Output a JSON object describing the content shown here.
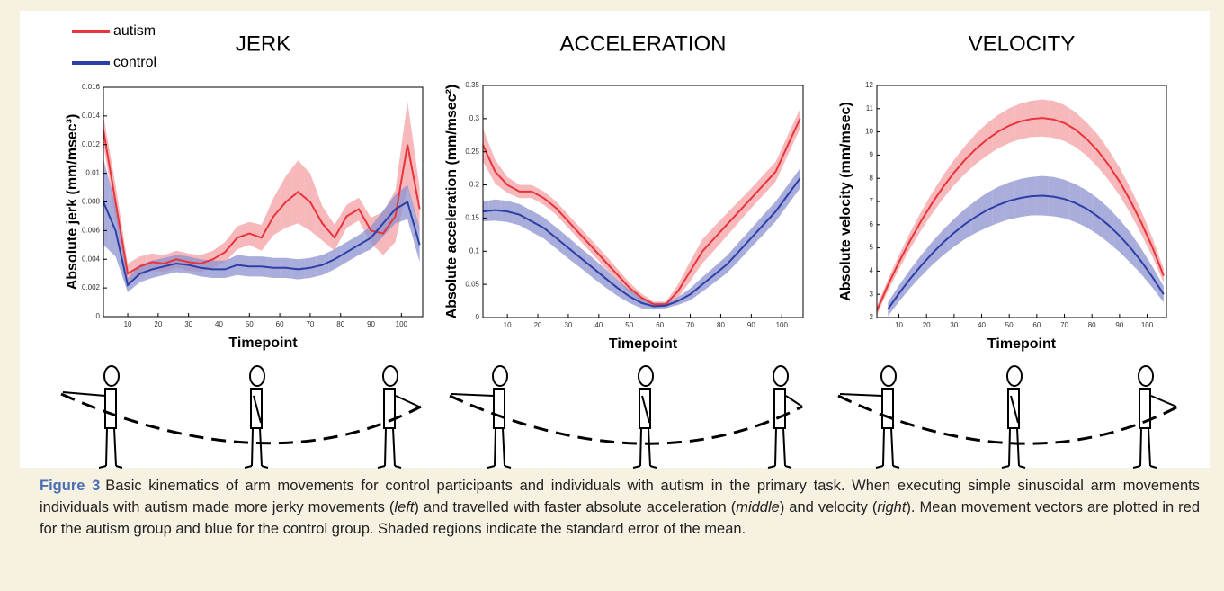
{
  "chart_data": [
    {
      "type": "line",
      "title": "JERK",
      "xlabel": "Timepoint",
      "ylabel": "Absolute jerk (mm/msec³)",
      "legend": "top-left",
      "x": [
        2,
        6,
        10,
        14,
        18,
        22,
        26,
        30,
        34,
        38,
        42,
        46,
        50,
        54,
        58,
        62,
        66,
        70,
        74,
        78,
        82,
        86,
        90,
        94,
        98,
        102,
        106
      ],
      "xlim": [
        2,
        107
      ],
      "xticks": [
        10,
        20,
        30,
        40,
        50,
        60,
        70,
        80,
        90,
        100
      ],
      "ylim": [
        0,
        0.016
      ],
      "yticks": [
        0,
        0.002,
        0.004,
        0.006,
        0.008,
        0.01,
        0.012,
        0.014,
        0.016
      ],
      "series": [
        {
          "name": "autism",
          "color": "#e8343a",
          "band_color": "#f4a0a4",
          "values": [
            0.013,
            0.008,
            0.003,
            0.0035,
            0.0038,
            0.0037,
            0.004,
            0.0038,
            0.0037,
            0.004,
            0.0045,
            0.0055,
            0.0058,
            0.0055,
            0.007,
            0.008,
            0.0087,
            0.008,
            0.0065,
            0.0055,
            0.007,
            0.0075,
            0.006,
            0.0058,
            0.007,
            0.012,
            0.0075
          ],
          "errors": [
            0.001,
            0.0012,
            0.0007,
            0.0007,
            0.0006,
            0.0006,
            0.0006,
            0.0006,
            0.0006,
            0.0006,
            0.0007,
            0.0008,
            0.0008,
            0.0009,
            0.0013,
            0.0018,
            0.0022,
            0.002,
            0.0012,
            0.0009,
            0.0008,
            0.0008,
            0.0009,
            0.0015,
            0.0018,
            0.003,
            0.0015
          ]
        },
        {
          "name": "control",
          "color": "#2c3fa6",
          "band_color": "#8c92cf",
          "values": [
            0.008,
            0.006,
            0.0022,
            0.003,
            0.0033,
            0.0035,
            0.0037,
            0.0036,
            0.0034,
            0.0033,
            0.0033,
            0.0036,
            0.0035,
            0.0035,
            0.0034,
            0.0034,
            0.0033,
            0.0034,
            0.0036,
            0.004,
            0.0045,
            0.005,
            0.0055,
            0.0065,
            0.0075,
            0.008,
            0.005
          ],
          "errors": [
            0.003,
            0.0018,
            0.0005,
            0.0006,
            0.0006,
            0.0006,
            0.0006,
            0.0006,
            0.0006,
            0.0006,
            0.0006,
            0.0007,
            0.0007,
            0.0007,
            0.0007,
            0.0007,
            0.0007,
            0.0007,
            0.0007,
            0.0007,
            0.0007,
            0.0007,
            0.0008,
            0.0009,
            0.001,
            0.0012,
            0.0012
          ]
        }
      ]
    },
    {
      "type": "line",
      "title": "ACCELERATION",
      "xlabel": "Timepoint",
      "ylabel": "Absolute acceleration (mm/msec²)",
      "x": [
        2,
        6,
        10,
        14,
        18,
        22,
        26,
        30,
        34,
        38,
        42,
        46,
        50,
        54,
        58,
        62,
        66,
        70,
        74,
        78,
        82,
        86,
        90,
        94,
        98,
        102,
        106
      ],
      "xlim": [
        2,
        107
      ],
      "xticks": [
        10,
        20,
        30,
        40,
        50,
        60,
        70,
        80,
        90,
        100
      ],
      "ylim": [
        0,
        0.35
      ],
      "yticks": [
        0,
        0.05,
        0.1,
        0.15,
        0.2,
        0.25,
        0.3,
        0.35
      ],
      "series": [
        {
          "color": "#e8343a",
          "band_color": "#f4a0a4",
          "values": [
            0.26,
            0.22,
            0.2,
            0.19,
            0.19,
            0.18,
            0.165,
            0.145,
            0.125,
            0.105,
            0.085,
            0.065,
            0.045,
            0.03,
            0.02,
            0.02,
            0.04,
            0.07,
            0.1,
            0.12,
            0.14,
            0.16,
            0.18,
            0.2,
            0.22,
            0.26,
            0.3
          ],
          "errors": [
            0.025,
            0.018,
            0.012,
            0.01,
            0.01,
            0.01,
            0.01,
            0.01,
            0.01,
            0.01,
            0.01,
            0.009,
            0.008,
            0.006,
            0.004,
            0.004,
            0.01,
            0.015,
            0.018,
            0.018,
            0.017,
            0.016,
            0.015,
            0.015,
            0.015,
            0.015,
            0.015
          ]
        },
        {
          "color": "#2c3fa6",
          "band_color": "#8c92cf",
          "values": [
            0.16,
            0.162,
            0.16,
            0.155,
            0.145,
            0.135,
            0.12,
            0.105,
            0.09,
            0.075,
            0.06,
            0.045,
            0.032,
            0.022,
            0.017,
            0.018,
            0.025,
            0.035,
            0.05,
            0.065,
            0.08,
            0.1,
            0.12,
            0.14,
            0.16,
            0.185,
            0.21
          ],
          "errors": [
            0.015,
            0.016,
            0.016,
            0.016,
            0.016,
            0.016,
            0.016,
            0.016,
            0.015,
            0.015,
            0.014,
            0.012,
            0.01,
            0.008,
            0.005,
            0.004,
            0.006,
            0.009,
            0.011,
            0.012,
            0.013,
            0.014,
            0.014,
            0.015,
            0.015,
            0.015,
            0.015
          ]
        }
      ]
    },
    {
      "type": "line",
      "title": "VELOCITY",
      "xlabel": "Timepoint",
      "ylabel": "Absolute velocity (mm/msec)",
      "x": [
        2,
        6,
        10,
        14,
        18,
        22,
        26,
        30,
        34,
        38,
        42,
        46,
        50,
        54,
        58,
        62,
        66,
        70,
        74,
        78,
        82,
        86,
        90,
        94,
        98,
        102,
        106
      ],
      "xlim": [
        2,
        107
      ],
      "xticks": [
        10,
        20,
        30,
        40,
        50,
        60,
        70,
        80,
        90,
        100
      ],
      "ylim": [
        2,
        12
      ],
      "yticks": [
        2,
        3,
        4,
        5,
        6,
        7,
        8,
        9,
        10,
        11,
        12
      ],
      "series": [
        {
          "color": "#e8343a",
          "band_color": "#f4a0a4",
          "values": [
            2.3,
            3.39,
            4.38,
            5.3,
            6.15,
            6.92,
            7.62,
            8.25,
            8.8,
            9.28,
            9.68,
            10.01,
            10.27,
            10.45,
            10.56,
            10.6,
            10.54,
            10.38,
            10.1,
            9.7,
            9.2,
            8.58,
            7.86,
            7.02,
            6.06,
            5.0,
            3.8
          ],
          "errors": [
            0.2,
            0.25,
            0.3,
            0.35,
            0.4,
            0.45,
            0.5,
            0.55,
            0.6,
            0.65,
            0.7,
            0.72,
            0.75,
            0.77,
            0.78,
            0.8,
            0.8,
            0.78,
            0.75,
            0.72,
            0.7,
            0.65,
            0.6,
            0.55,
            0.5,
            0.4,
            0.3
          ]
        },
        {
          "color": "#2c3fa6",
          "band_color": "#8c92cf",
          "values": [
            null,
            2.36,
            3.03,
            3.66,
            4.23,
            4.75,
            5.23,
            5.65,
            6.03,
            6.35,
            6.63,
            6.85,
            7.03,
            7.15,
            7.23,
            7.25,
            7.21,
            7.11,
            6.93,
            6.69,
            6.37,
            5.98,
            5.52,
            5.0,
            4.4,
            3.73,
            3.0
          ],
          "errors": [
            null,
            0.3,
            0.35,
            0.4,
            0.45,
            0.5,
            0.55,
            0.6,
            0.65,
            0.7,
            0.75,
            0.78,
            0.8,
            0.82,
            0.83,
            0.85,
            0.85,
            0.83,
            0.82,
            0.8,
            0.78,
            0.75,
            0.7,
            0.65,
            0.55,
            0.45,
            0.35
          ]
        }
      ]
    }
  ],
  "caption": {
    "label": "Figure 3",
    "parts": [
      {
        "text": "Basic kinematics of arm movements for control participants and individuals with autism in the primary task. When executing simple sinusoidal arm movements individuals with autism made more jerky movements (",
        "italic": false
      },
      {
        "text": "left",
        "italic": true
      },
      {
        "text": ") and travelled with faster absolute acceleration (",
        "italic": false
      },
      {
        "text": "middle",
        "italic": true
      },
      {
        "text": ") and velocity (",
        "italic": false
      },
      {
        "text": "right",
        "italic": true
      },
      {
        "text": "). Mean movement vectors are plotted in red for the autism group and blue for the control group. Shaded regions indicate the standard error of the mean.",
        "italic": false
      }
    ]
  }
}
